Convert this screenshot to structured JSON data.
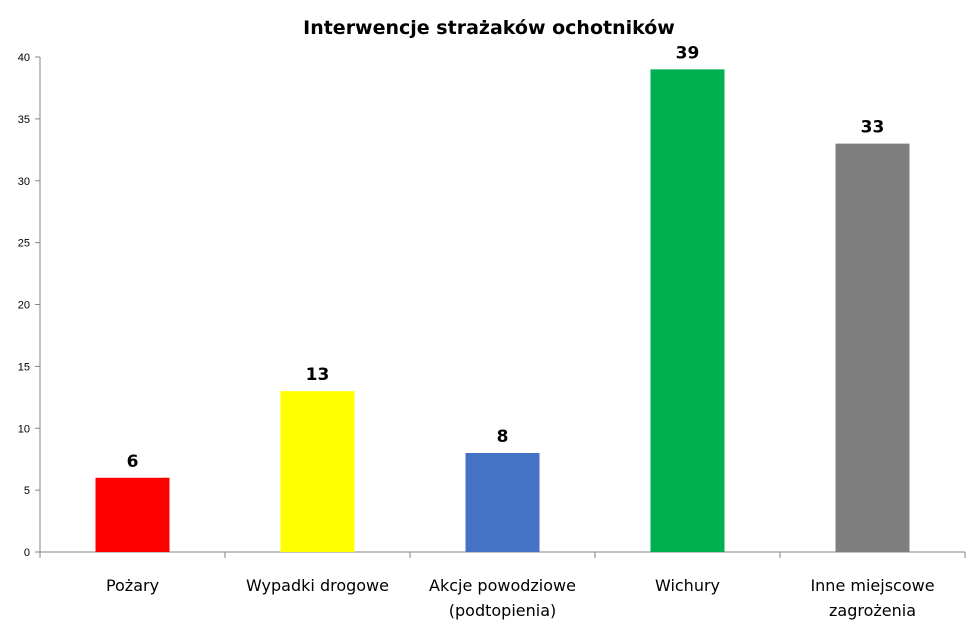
{
  "chart_data": {
    "type": "bar",
    "title": "Interwencje strażaków ochotników",
    "xlabel": "",
    "ylabel": "",
    "categories": [
      [
        "Pożary"
      ],
      [
        "Wypadki drogowe"
      ],
      [
        "Akcje powodziowe",
        "(podtopienia)"
      ],
      [
        "Wichury"
      ],
      [
        "Inne miejscowe",
        "zagrożenia"
      ]
    ],
    "values": [
      6,
      13,
      8,
      39,
      33
    ],
    "colors": [
      "#ff0000",
      "#ffff00",
      "#4472c4",
      "#00b050",
      "#7f7f7f"
    ],
    "ylim": [
      0,
      40
    ],
    "yticks": [
      0,
      5,
      10,
      15,
      20,
      25,
      30,
      35,
      40
    ],
    "grid": false,
    "legend": "none"
  }
}
